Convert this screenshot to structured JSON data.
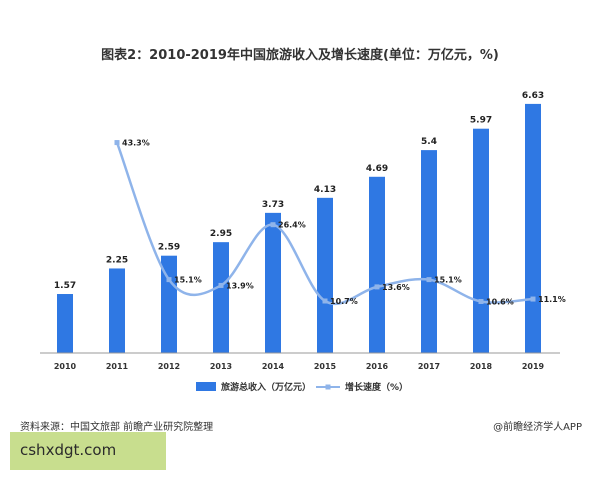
{
  "title": "图表2：2010-2019年中国旅游收入及增长速度(单位：万亿元，%)",
  "source_text": "资料来源：中国文旅部 前瞻产业研究院整理",
  "brand_text": "@前瞻经济学人APP",
  "watermark_text": "cshxdgt.com",
  "colors": {
    "bar": "#2f78e3",
    "line": "#8fb4ea",
    "watermark_bg": "#c8de8e"
  },
  "chart_data": {
    "type": "bar",
    "categories": [
      "2010",
      "2011",
      "2012",
      "2013",
      "2014",
      "2015",
      "2016",
      "2017",
      "2018",
      "2019"
    ],
    "series": [
      {
        "name": "旅游总收入（万亿元）",
        "kind": "bar",
        "values": [
          1.57,
          2.25,
          2.59,
          2.95,
          3.73,
          4.13,
          4.69,
          5.4,
          5.97,
          6.63
        ],
        "labels": [
          "1.57",
          "2.25",
          "2.59",
          "2.95",
          "3.73",
          "4.13",
          "4.69",
          "5.4",
          "5.97",
          "6.63"
        ]
      },
      {
        "name": "增长速度（%）",
        "kind": "line",
        "values": [
          null,
          43.3,
          15.1,
          13.9,
          26.4,
          10.7,
          13.6,
          15.1,
          10.6,
          11.1
        ],
        "labels": [
          null,
          "43.3%",
          "15.1%",
          "13.9%",
          "26.4%",
          "10.7%",
          "13.6%",
          "15.1%",
          "10.6%",
          "11.1%"
        ]
      }
    ],
    "xlabel": "",
    "ylabel": "",
    "ylim_bar": [
      0,
      7
    ],
    "ylim_line": [
      0,
      50
    ],
    "grid": false,
    "legend_position": "bottom"
  }
}
